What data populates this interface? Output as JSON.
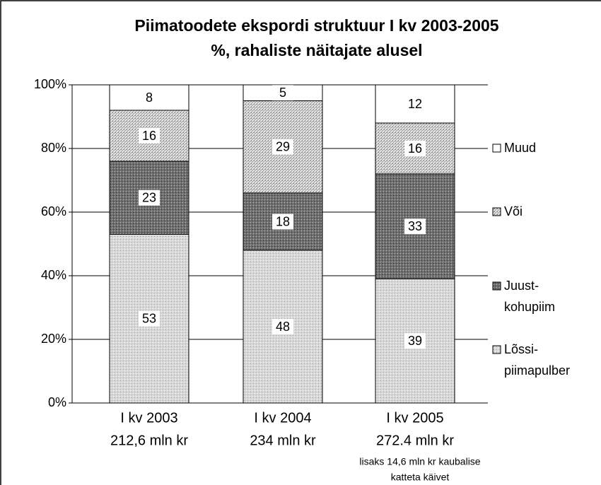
{
  "chart_data": {
    "type": "stacked_bar",
    "title": "Piimatoodete ekspordi struktuur I kv 2003-2005",
    "subtitle": "%, rahaliste näitajate alusel",
    "categories": [
      [
        "I kv 2003",
        "212,6 mln kr"
      ],
      [
        "I kv 2004",
        "234 mln kr"
      ],
      [
        "I kv 2005",
        "272.4 mln kr"
      ]
    ],
    "annotation": [
      "lisaks 14,6 mln kr kaubalise",
      "katteta käivet"
    ],
    "series": [
      {
        "name": [
          "Lõssi-",
          "piimapulber"
        ],
        "color": "#d8d8d8",
        "values": [
          53,
          48,
          39
        ]
      },
      {
        "name": [
          "Juust-",
          "kohupiim"
        ],
        "color": "#6e6e6e",
        "values": [
          23,
          18,
          33
        ]
      },
      {
        "name": [
          "Või"
        ],
        "color": "#b4b4b4",
        "values": [
          16,
          29,
          16
        ]
      },
      {
        "name": [
          "Muud"
        ],
        "color": "#ffffff",
        "values": [
          8,
          5,
          12
        ]
      }
    ],
    "ylim": [
      0,
      100
    ],
    "yticks": [
      {
        "value": 0,
        "label": "0%"
      },
      {
        "value": 20,
        "label": "20%"
      },
      {
        "value": 40,
        "label": "40%"
      },
      {
        "value": 60,
        "label": "60%"
      },
      {
        "value": 80,
        "label": "80%"
      },
      {
        "value": 100,
        "label": "100%"
      }
    ],
    "grid": true
  }
}
